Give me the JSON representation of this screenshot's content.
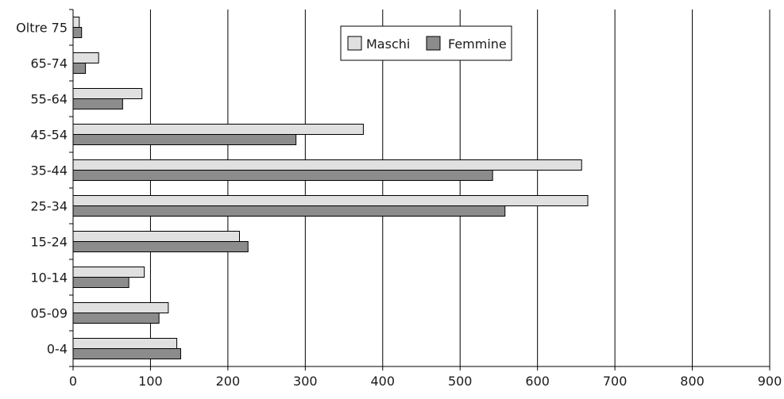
{
  "chart_data": {
    "type": "bar",
    "orientation": "horizontal",
    "categories": [
      "Oltre 75",
      "65-74",
      "55-64",
      "45-54",
      "35-44",
      "25-34",
      "15-24",
      "10-14",
      "05-09",
      "0-4"
    ],
    "series": [
      {
        "name": "Maschi",
        "color": "#e0e0e0",
        "values": [
          8,
          33,
          89,
          375,
          657,
          665,
          215,
          92,
          123,
          134
        ]
      },
      {
        "name": "Femmine",
        "color": "#8c8c8c",
        "values": [
          11,
          16,
          64,
          288,
          542,
          558,
          226,
          72,
          111,
          139
        ]
      }
    ],
    "xlim": [
      0,
      900
    ],
    "xticks": [
      "0",
      "100",
      "200",
      "300",
      "400",
      "500",
      "600",
      "700",
      "800",
      "900"
    ],
    "title": "",
    "xlabel": "",
    "ylabel": "",
    "grid": "vertical",
    "legend": {
      "position": "top-center",
      "items": [
        "Maschi",
        "Femmine"
      ]
    }
  }
}
